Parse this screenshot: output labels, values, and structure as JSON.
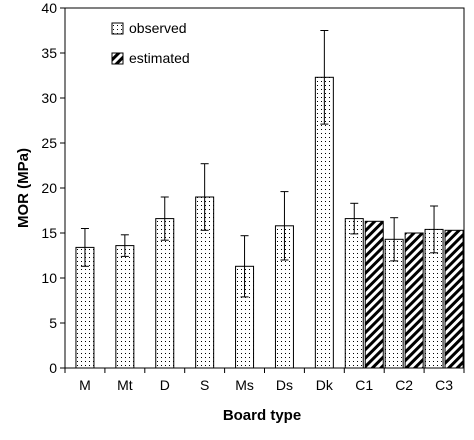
{
  "chart_data": {
    "type": "bar",
    "xlabel": "Board type",
    "ylabel": "MOR (MPa)",
    "ylim": [
      0,
      40
    ],
    "ytick_step": 5,
    "categories": [
      "M",
      "Mt",
      "D",
      "S",
      "Ms",
      "Ds",
      "Dk",
      "C1",
      "C2",
      "C3"
    ],
    "series": [
      {
        "name": "observed",
        "values": [
          13.4,
          13.6,
          16.6,
          19.0,
          11.3,
          15.8,
          32.3,
          16.6,
          14.3,
          15.4
        ],
        "error": [
          2.1,
          1.2,
          2.4,
          3.7,
          3.4,
          3.8,
          5.2,
          1.7,
          2.4,
          2.6
        ]
      },
      {
        "name": "estimated",
        "values": [
          null,
          null,
          null,
          null,
          null,
          null,
          null,
          16.3,
          15.0,
          15.3
        ]
      }
    ],
    "legend_position": "top-left",
    "grid": false
  }
}
